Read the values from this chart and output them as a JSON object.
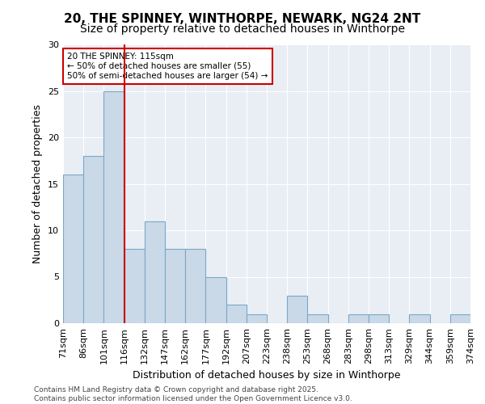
{
  "title1": "20, THE SPINNEY, WINTHORPE, NEWARK, NG24 2NT",
  "title2": "Size of property relative to detached houses in Winthorpe",
  "xlabel": "Distribution of detached houses by size in Winthorpe",
  "ylabel": "Number of detached properties",
  "bin_edges": [
    "71sqm",
    "86sqm",
    "101sqm",
    "116sqm",
    "132sqm",
    "147sqm",
    "162sqm",
    "177sqm",
    "192sqm",
    "207sqm",
    "223sqm",
    "238sqm",
    "253sqm",
    "268sqm",
    "283sqm",
    "298sqm",
    "313sqm",
    "329sqm",
    "344sqm",
    "359sqm",
    "374sqm"
  ],
  "bar_heights": [
    16,
    18,
    25,
    8,
    11,
    8,
    8,
    5,
    2,
    1,
    0,
    3,
    1,
    0,
    1,
    1,
    0,
    1,
    0,
    1
  ],
  "bar_color": "#c9d9e8",
  "bar_edge_color": "#7ba7c7",
  "vline_x": 3.0,
  "vline_color": "#cc0000",
  "annotation_text": "20 THE SPINNEY: 115sqm\n← 50% of detached houses are smaller (55)\n50% of semi-detached houses are larger (54) →",
  "annotation_box_color": "#ffffff",
  "annotation_box_edge": "#cc0000",
  "ylim": [
    0,
    30
  ],
  "yticks": [
    0,
    5,
    10,
    15,
    20,
    25,
    30
  ],
  "background_color": "#e8eef4",
  "footer_text": "Contains HM Land Registry data © Crown copyright and database right 2025.\nContains public sector information licensed under the Open Government Licence v3.0.",
  "title1_fontsize": 11,
  "title2_fontsize": 10,
  "xlabel_fontsize": 9,
  "ylabel_fontsize": 9,
  "tick_fontsize": 8,
  "annotation_fontsize": 7.5,
  "footer_fontsize": 6.5
}
